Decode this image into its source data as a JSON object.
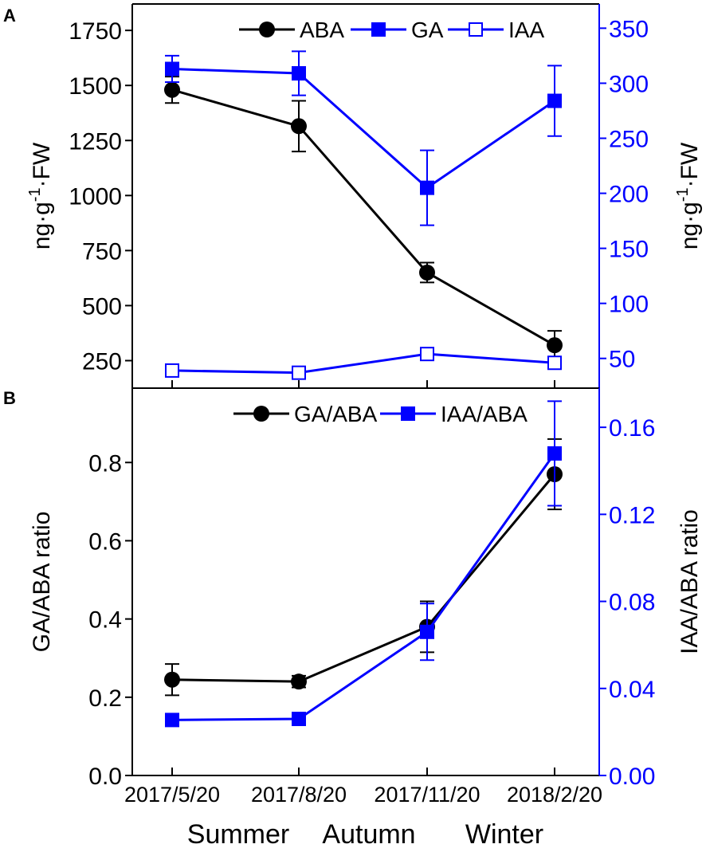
{
  "chart_data": [
    {
      "panel": "A",
      "type": "line",
      "ylabel_left": {
        "base": "ng·g",
        "sup": "-1",
        "tail": "·FW"
      },
      "ylabel_right": {
        "base": "ng·g",
        "sup": "-1",
        "tail": "·FW"
      },
      "yticks_left": [
        "250",
        "500",
        "750",
        "1000",
        "1250",
        "1500",
        "1750"
      ],
      "yticks_right": [
        "50",
        "100",
        "150",
        "200",
        "250",
        "300",
        "350"
      ],
      "ylim_left": [
        125,
        1870
      ],
      "ylim_right": [
        23,
        372
      ],
      "categories": [
        "2017/5/20",
        "2017/8/20",
        "2017/11/20",
        "2018/2/20"
      ],
      "series": [
        {
          "name": "ABA",
          "axis": "left",
          "color": "#000000",
          "marker": "circle",
          "values": [
            1480,
            1315,
            650,
            320
          ],
          "errors": [
            60,
            115,
            45,
            65
          ]
        },
        {
          "name": "GA",
          "axis": "right",
          "color": "#0000ff",
          "marker": "square",
          "values": [
            313,
            309,
            205,
            284
          ],
          "errors": [
            12,
            20,
            34,
            32
          ]
        },
        {
          "name": "IAA",
          "axis": "right",
          "color": "#0000ff",
          "marker": "square-open",
          "values": [
            39,
            37,
            54,
            46
          ],
          "errors": [
            4,
            4,
            4,
            4
          ]
        }
      ]
    },
    {
      "panel": "B",
      "type": "line",
      "ylabel_left": "GA/ABA ratio",
      "ylabel_right": "IAA/ABA ratio",
      "yticks_left": [
        "0.0",
        "0.2",
        "0.4",
        "0.6",
        "0.8"
      ],
      "yticks_right": [
        "0.00",
        "0.04",
        "0.08",
        "0.12",
        "0.16"
      ],
      "ylim_left": [
        0,
        0.99
      ],
      "ylim_right": [
        0,
        0.178
      ],
      "categories": [
        "2017/5/20",
        "2017/8/20",
        "2017/11/20",
        "2018/2/20"
      ],
      "series": [
        {
          "name": "GA/ABA",
          "axis": "left",
          "color": "#000000",
          "marker": "circle",
          "values": [
            0.245,
            0.24,
            0.38,
            0.77
          ],
          "errors": [
            0.04,
            0.015,
            0.065,
            0.09
          ]
        },
        {
          "name": "IAA/ABA",
          "axis": "right",
          "color": "#0000ff",
          "marker": "square",
          "values": [
            0.0255,
            0.026,
            0.066,
            0.148
          ],
          "errors": [
            0.002,
            0.002,
            0.013,
            0.024
          ]
        }
      ]
    }
  ],
  "seasons": [
    "Summer",
    "Autumn",
    "Winter"
  ],
  "colors": {
    "left_axis": "#000000",
    "right_axis": "#0000ff"
  }
}
